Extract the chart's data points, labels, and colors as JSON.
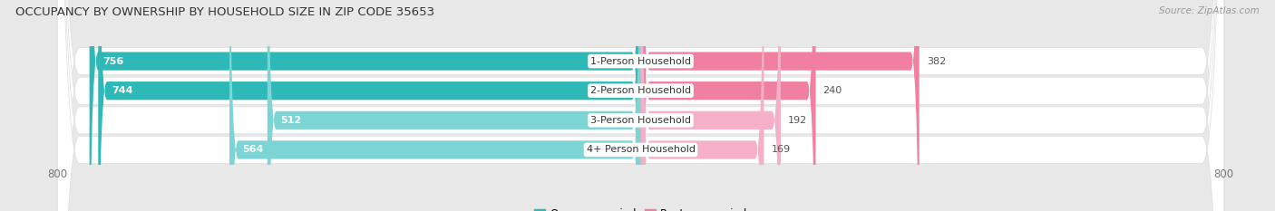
{
  "title": "OCCUPANCY BY OWNERSHIP BY HOUSEHOLD SIZE IN ZIP CODE 35653",
  "source": "Source: ZipAtlas.com",
  "categories": [
    "1-Person Household",
    "2-Person Household",
    "3-Person Household",
    "4+ Person Household"
  ],
  "owner_values": [
    756,
    744,
    512,
    564
  ],
  "renter_values": [
    382,
    240,
    192,
    169
  ],
  "owner_colors": [
    "#2eb8b8",
    "#2eb8b8",
    "#7dd4d4",
    "#7dd4d4"
  ],
  "renter_colors": [
    "#f07fa0",
    "#f07fa0",
    "#f5afc8",
    "#f5afc8"
  ],
  "axis_max": 800,
  "bar_height": 0.62,
  "row_colors": [
    "#ebebeb",
    "#f5f5f5",
    "#ebebeb",
    "#f5f5f5"
  ],
  "title_fontsize": 9.5,
  "value_fontsize": 8,
  "label_fontsize": 8,
  "legend_fontsize": 8.5,
  "source_fontsize": 7.5
}
